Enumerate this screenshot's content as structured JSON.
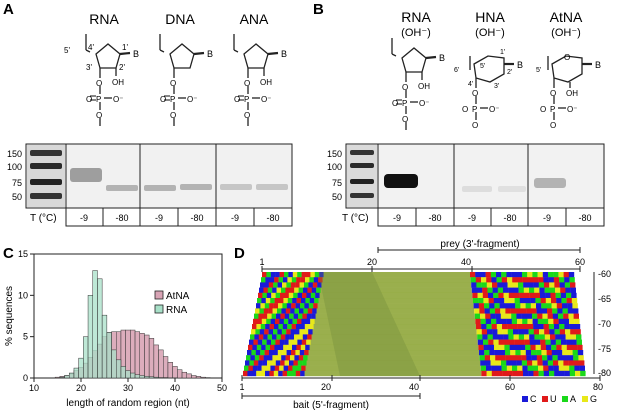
{
  "panels": {
    "A": "A",
    "B": "B",
    "C": "C",
    "D": "D"
  },
  "panel_a": {
    "structures": [
      "RNA",
      "DNA",
      "ANA"
    ],
    "struct_labels": {
      "five": "5'",
      "four": "4'",
      "one": "1'",
      "three": "3'",
      "two": "2'",
      "base": "B",
      "oh": "OH",
      "o": "O",
      "p": "P",
      "o_minus": "O⁻"
    },
    "ladder": [
      "150",
      "100",
      "75",
      "50"
    ],
    "temp_label": "T (°C)",
    "temps": [
      "-9",
      "-80",
      "-9",
      "-80",
      "-9",
      "-80"
    ]
  },
  "panel_b": {
    "structures": [
      "RNA",
      "HNA",
      "AtNA"
    ],
    "sublabel": "(OH⁻)",
    "hna_labels": {
      "one": "1'",
      "two": "2'",
      "three": "3'",
      "four": "4'",
      "five": "5'",
      "six": "6'"
    },
    "atna_labels": {
      "five": "5'"
    },
    "ladder": [
      "150",
      "100",
      "75",
      "50"
    ],
    "temp_label": "T (°C)",
    "temps": [
      "-9",
      "-80",
      "-9",
      "-80",
      "-9",
      "-80"
    ]
  },
  "chart_data": {
    "type": "bar",
    "xlabel": "length of random region (nt)",
    "ylabel": "% sequences",
    "xlim": [
      10,
      50
    ],
    "ylim": [
      0,
      15
    ],
    "xticks": [
      "10",
      "20",
      "30",
      "40",
      "50"
    ],
    "yticks": [
      "0",
      "5",
      "10",
      "15"
    ],
    "legend": "top-right",
    "colors": {
      "AtNA": "#d8a4b5",
      "RNA": "#a8e0c8"
    },
    "series": [
      {
        "name": "AtNA",
        "x": [
          15,
          16,
          17,
          18,
          19,
          20,
          21,
          22,
          23,
          24,
          25,
          26,
          27,
          28,
          29,
          30,
          31,
          32,
          33,
          34,
          35,
          36,
          37,
          38,
          39,
          40,
          41,
          42,
          43,
          44,
          45,
          46,
          47
        ],
        "values": [
          0.1,
          0.2,
          0.3,
          0.5,
          0.9,
          1.3,
          1.8,
          2.5,
          3.3,
          4.1,
          5.0,
          5.5,
          5.6,
          5.6,
          5.8,
          5.8,
          5.8,
          5.6,
          5.4,
          5.2,
          4.8,
          4.0,
          3.4,
          2.6,
          1.9,
          1.4,
          1.0,
          0.7,
          0.5,
          0.3,
          0.2,
          0.1,
          0.05
        ]
      },
      {
        "name": "RNA",
        "x": [
          16,
          17,
          18,
          19,
          20,
          21,
          22,
          23,
          24,
          25,
          26,
          27,
          28,
          29,
          30,
          31,
          32,
          33,
          34,
          35,
          36,
          37,
          38,
          39,
          40
        ],
        "values": [
          0.1,
          0.3,
          0.6,
          1.2,
          2.4,
          5.0,
          10.0,
          13.0,
          12.0,
          7.6,
          5.5,
          3.4,
          2.2,
          1.4,
          0.9,
          0.6,
          0.4,
          0.3,
          0.2,
          0.15,
          0.1,
          0.05,
          0.05,
          0.02,
          0.02
        ]
      }
    ]
  },
  "panel_d": {
    "prey_label": "prey (3'-fragment)",
    "bait_label": "bait (5'-fragment)",
    "top_ticks": [
      "1",
      "20",
      "40",
      "60"
    ],
    "bottom_ticks": [
      "1",
      "20",
      "40",
      "60",
      "80"
    ],
    "temp_ticks": [
      "-60",
      "-65",
      "-70",
      "-75",
      "-80"
    ],
    "legend": [
      {
        "label": "C",
        "color": "#1a1ad8"
      },
      {
        "label": "U",
        "color": "#e01a1a"
      },
      {
        "label": "A",
        "color": "#1ad81a"
      },
      {
        "label": "G",
        "color": "#e8e81a"
      }
    ]
  }
}
